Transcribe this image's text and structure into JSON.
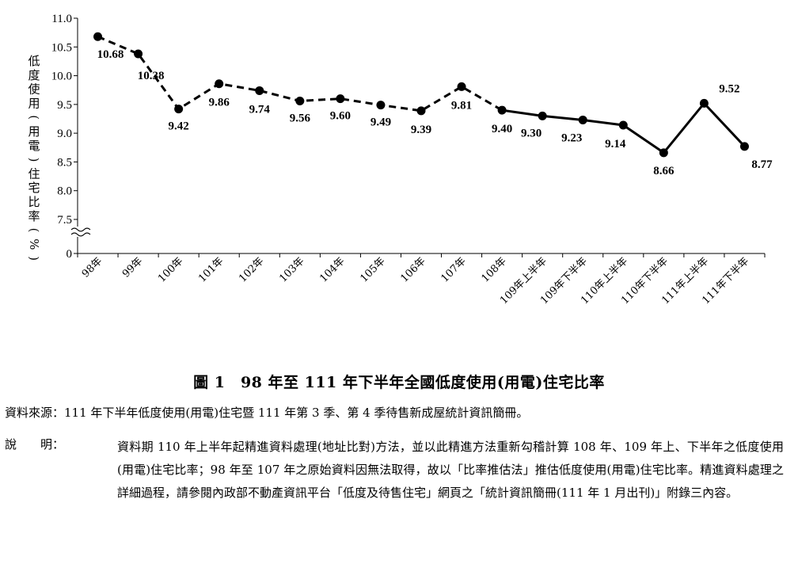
{
  "figure": {
    "title": "圖 1　98 年至 111 年下半年全國低度使用(用電)住宅比率",
    "source": "資料來源：111 年下半年低度使用(用電)住宅暨 111 年第 3 季、第 4 季待售新成屋統計資訊簡冊。",
    "note_label": "說　　明：",
    "note_body": "資料期 110 年上半年起精進資料處理(地址比對)方法，並以此精進方法重新勾稽計算 108 年、109 年上、下半年之低度使用(用電)住宅比率；98 年至 107 年之原始資料因無法取得，故以「比率推估法」推估低度使用(用電)住宅比率。精進資料處理之詳細過程，請參閱內政部不動產資訊平台「低度及待售住宅」網頁之「統計資訊簡冊(111 年 1 月出刊)」附錄三內容。"
  },
  "chart_data": {
    "type": "line",
    "title": "",
    "xlabel": "",
    "ylabel": "低度使用(用電)住宅比率(%)",
    "ylim": [
      7.0,
      11.0
    ],
    "y_ticks": [
      "11.0",
      "10.5",
      "10.0",
      "9.5",
      "9.0",
      "8.5",
      "8.0",
      "7.5",
      "0"
    ],
    "y_axis_break": true,
    "grid": false,
    "legend": "none",
    "categories": [
      "98年",
      "99年",
      "100年",
      "101年",
      "102年",
      "103年",
      "104年",
      "105年",
      "106年",
      "107年",
      "108年",
      "109年上半年",
      "109年下半年",
      "110年上半年",
      "110年下半年",
      "111年上半年",
      "111年下半年"
    ],
    "values": [
      10.68,
      10.38,
      9.42,
      9.86,
      9.74,
      9.56,
      9.6,
      9.49,
      9.39,
      9.81,
      9.4,
      9.3,
      9.23,
      9.14,
      8.66,
      9.52,
      8.77
    ],
    "value_labels": [
      "10.68",
      "10.38",
      "9.42",
      "9.86",
      "9.74",
      "9.56",
      "9.60",
      "9.49",
      "9.39",
      "9.81",
      "9.40",
      "9.30",
      "9.23",
      "9.14",
      "8.66",
      "9.52",
      "8.77"
    ],
    "line_styles": [
      {
        "from": "98年",
        "to": "108年",
        "style": "dashed"
      },
      {
        "from": "108年",
        "to": "111年下半年",
        "style": "solid"
      }
    ],
    "line_color": "#000000",
    "marker_color": "#000000"
  }
}
